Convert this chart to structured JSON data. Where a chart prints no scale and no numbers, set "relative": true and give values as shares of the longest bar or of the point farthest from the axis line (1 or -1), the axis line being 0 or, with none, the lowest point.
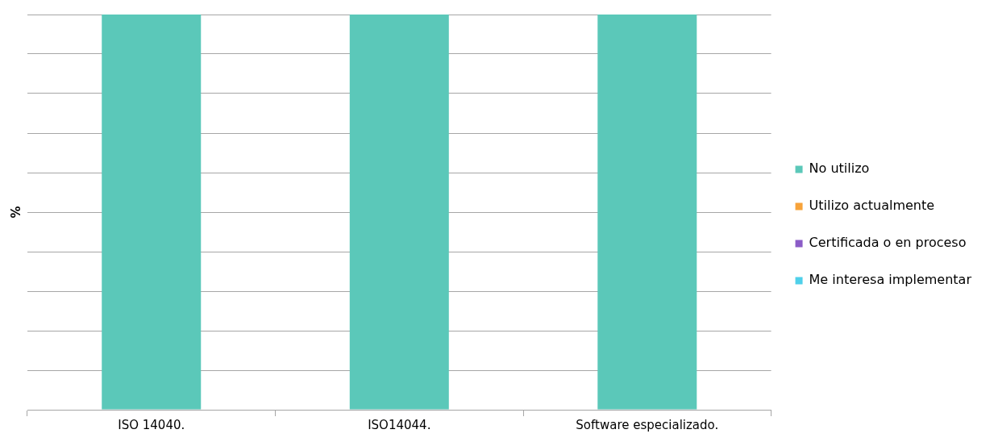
{
  "chart_data": {
    "type": "bar",
    "stacked": true,
    "relative": true,
    "ylabel": "%",
    "categories": [
      "ISO 14040.",
      "ISO14044.",
      "Software especializado."
    ],
    "series": [
      {
        "name": "No utilizo",
        "color": "#5bc8b9",
        "values": [
          1,
          1,
          1
        ]
      },
      {
        "name": "Utilizo actualmente",
        "color": "#f7a33a",
        "values": [
          0,
          0,
          0
        ]
      },
      {
        "name": "Certificada o en proceso",
        "color": "#8b5cc7",
        "values": [
          0,
          0,
          0
        ]
      },
      {
        "name": "Me interesa implementar",
        "color": "#4fd0ea",
        "values": [
          0,
          0,
          0
        ]
      }
    ],
    "grid": "y",
    "legend": "right"
  }
}
